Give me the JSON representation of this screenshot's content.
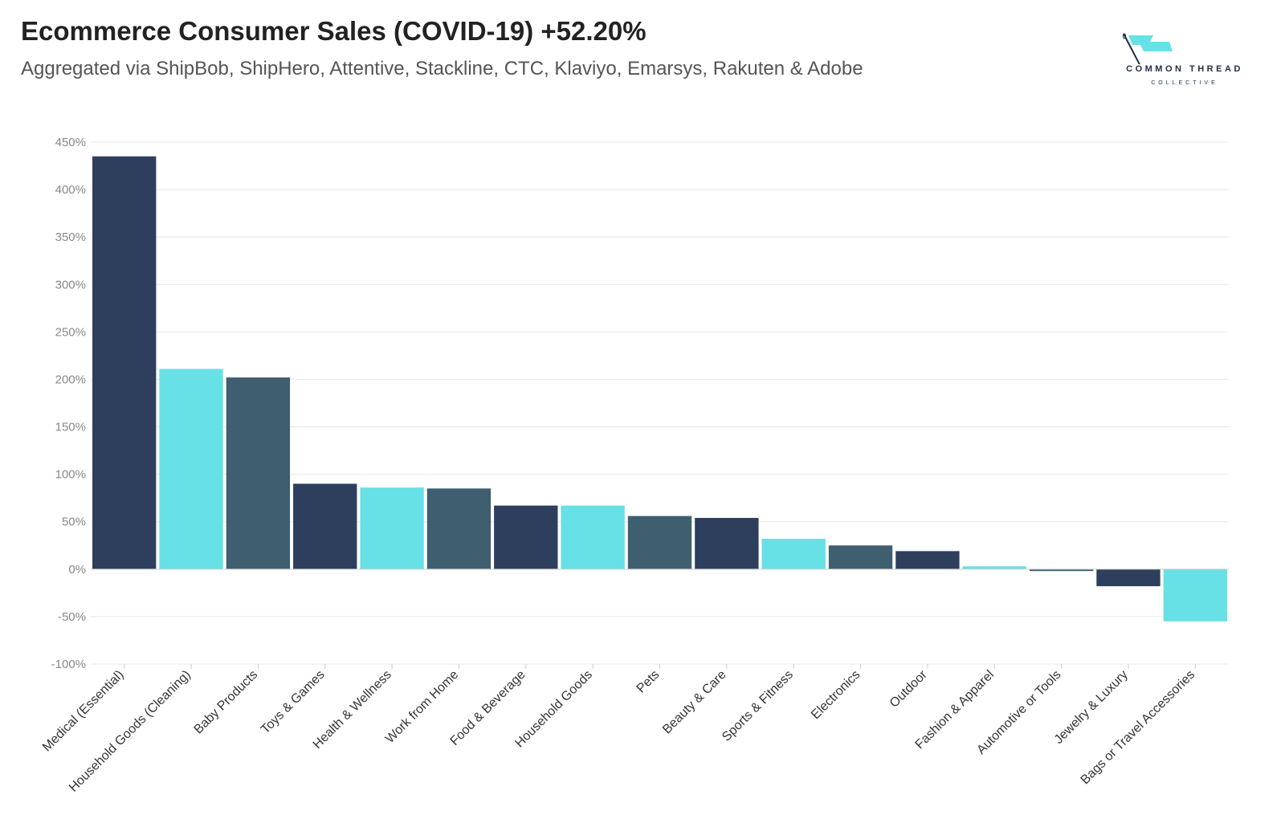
{
  "header": {
    "title": "Ecommerce Consumer Sales (COVID-19) +52.20%",
    "subtitle": "Aggregated via ShipBob, ShipHero, Attentive, Stackline, CTC, Klaviyo, Emarsys, Rakuten & Adobe"
  },
  "logo": {
    "line1": "COMMON THREAD",
    "line2": "COLLECTIVE",
    "icon": "flag-needle-icon",
    "flag_color": "#67e0e6"
  },
  "colors": {
    "navy": "#2e3f5e",
    "cyan": "#67e0e6",
    "slate": "#3f5e70",
    "grid": "#e8e8e8",
    "tick_text": "#888888",
    "label_text": "#333333"
  },
  "chart_data": {
    "type": "bar",
    "categories": [
      "Medical (Essential)",
      "Household Goods (Cleaning)",
      "Baby Products",
      "Toys & Games",
      "Health & Wellness",
      "Work from Home",
      "Food & Beverage",
      "Household Goods",
      "Pets",
      "Beauty & Care",
      "Sports & Fitness",
      "Electronics",
      "Outdoor",
      "Fashion & Apparel",
      "Automotive or Tools",
      "Jewelry & Luxury",
      "Bags or Travel Accessories"
    ],
    "values": [
      435,
      211,
      202,
      90,
      86,
      85,
      67,
      67,
      56,
      54,
      32,
      25,
      19,
      3,
      -2,
      -18,
      -55
    ],
    "bar_colors": [
      "navy",
      "cyan",
      "slate",
      "navy",
      "cyan",
      "slate",
      "navy",
      "cyan",
      "slate",
      "navy",
      "cyan",
      "slate",
      "navy",
      "cyan",
      "slate",
      "navy",
      "cyan"
    ],
    "ylim": [
      -100,
      450
    ],
    "yticks": [
      450,
      400,
      350,
      300,
      250,
      200,
      150,
      100,
      50,
      0,
      -50,
      -100
    ],
    "ytick_labels": [
      "450%",
      "400%",
      "350%",
      "300%",
      "250%",
      "200%",
      "150%",
      "100%",
      "50%",
      "0%",
      "-50%",
      "-100%"
    ],
    "grid": true,
    "legend": "none"
  }
}
